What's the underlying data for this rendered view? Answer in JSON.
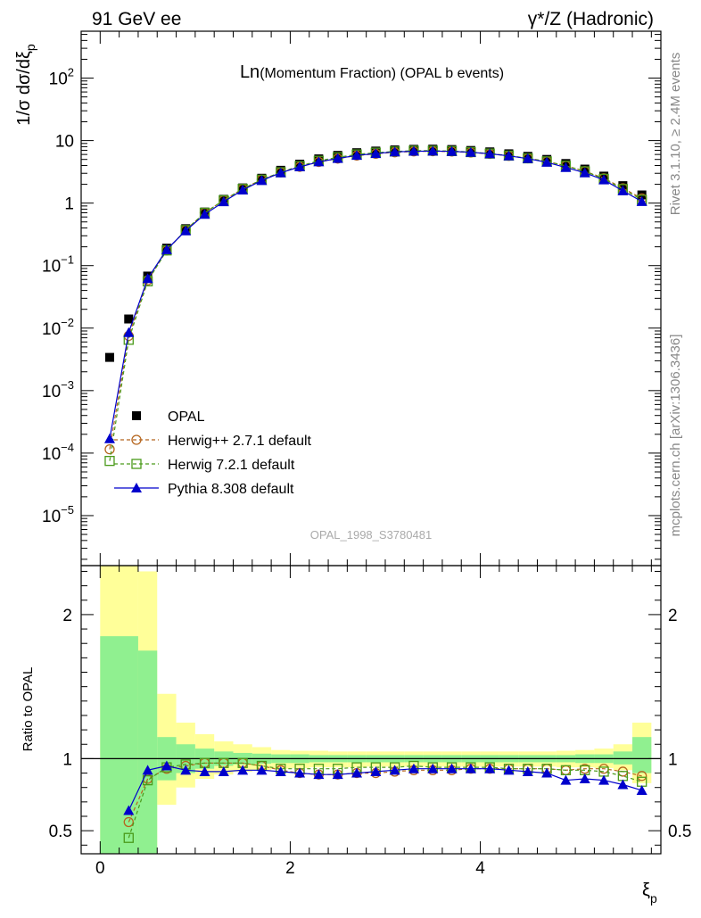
{
  "header": {
    "left": "91 GeV ee",
    "right": "γ*/Z (Hadronic)"
  },
  "side": {
    "rivet": "Rivet 3.1.10, ≥ 2.4M events",
    "mcplots": "mcplots.cern.ch [arXiv:1306.3436]"
  },
  "chart_data": [
    {
      "type": "scatter",
      "panel": "main",
      "title_main": "Ln",
      "title_rest": "(Momentum Fraction) (OPAL b events)",
      "ylabel": "1/σ dσ/dξ",
      "ylabel_sub": "p",
      "yscale": "log",
      "xlim": [
        -0.2,
        5.9
      ],
      "ylim_exp": [
        -5.8,
        2.75
      ],
      "yticks": [
        {
          "exp": 2,
          "label": "10",
          "sup": "2"
        },
        {
          "exp": 1,
          "label": "10",
          "sup": ""
        },
        {
          "exp": 0,
          "label": "1",
          "sup": ""
        },
        {
          "exp": -1,
          "label": "10",
          "sup": "−1"
        },
        {
          "exp": -2,
          "label": "10",
          "sup": "−2"
        },
        {
          "exp": -3,
          "label": "10",
          "sup": "−3"
        },
        {
          "exp": -4,
          "label": "10",
          "sup": "−4"
        },
        {
          "exp": -5,
          "label": "10",
          "sup": "−5"
        }
      ],
      "watermark": "OPAL_1998_S3780481",
      "legend": {
        "position": "lower-left"
      },
      "x": [
        0.1,
        0.3,
        0.5,
        0.7,
        0.9,
        1.1,
        1.3,
        1.5,
        1.7,
        1.9,
        2.1,
        2.3,
        2.5,
        2.7,
        2.9,
        3.1,
        3.3,
        3.5,
        3.7,
        3.9,
        4.1,
        4.3,
        4.5,
        4.7,
        4.9,
        5.1,
        5.3,
        5.5,
        5.7
      ],
      "series": [
        {
          "name": "OPAL",
          "color": "#000000",
          "marker": "square-filled",
          "values": [
            0.0034,
            0.014,
            0.068,
            0.19,
            0.39,
            0.72,
            1.15,
            1.75,
            2.5,
            3.35,
            4.2,
            5.1,
            5.8,
            6.4,
            6.8,
            7.1,
            7.25,
            7.3,
            7.2,
            6.95,
            6.6,
            6.15,
            5.6,
            5.0,
            4.3,
            3.5,
            2.7,
            1.9,
            1.35
          ]
        },
        {
          "name": "Herwig++ 2.7.1 default",
          "color": "#b5651d",
          "marker": "circle-open",
          "dash": true,
          "values": [
            0.000115,
            0.0075,
            0.058,
            0.175,
            0.37,
            0.7,
            1.11,
            1.69,
            2.38,
            3.1,
            3.8,
            4.55,
            5.15,
            5.75,
            6.15,
            6.5,
            6.7,
            6.75,
            6.68,
            6.45,
            6.12,
            5.7,
            5.2,
            4.65,
            3.95,
            3.25,
            2.5,
            1.73,
            1.19
          ]
        },
        {
          "name": "Herwig 7.2.1 default",
          "color": "#4a9a1a",
          "marker": "square-open",
          "dash": true,
          "values": [
            7.5e-05,
            0.0065,
            0.056,
            0.175,
            0.37,
            0.7,
            1.11,
            1.69,
            2.37,
            3.12,
            3.92,
            4.75,
            5.4,
            6.0,
            6.4,
            6.7,
            6.9,
            6.9,
            6.8,
            6.55,
            6.2,
            5.75,
            5.2,
            4.65,
            3.95,
            3.22,
            2.45,
            1.68,
            1.13
          ]
        },
        {
          "name": "Pythia 8.308 default",
          "color": "#0000cc",
          "marker": "triangle-filled",
          "dash": false,
          "values": [
            0.00017,
            0.0085,
            0.062,
            0.18,
            0.36,
            0.66,
            1.05,
            1.62,
            2.3,
            3.05,
            3.8,
            4.58,
            5.18,
            5.8,
            6.2,
            6.6,
            6.75,
            6.8,
            6.72,
            6.5,
            6.15,
            5.7,
            5.15,
            4.5,
            3.72,
            3.05,
            2.35,
            1.57,
            1.06
          ]
        }
      ]
    },
    {
      "type": "line",
      "panel": "ratio",
      "ylabel": "Ratio to OPAL",
      "xlabel": "ξ",
      "xlabel_sub": "p",
      "xlim": [
        -0.2,
        5.9
      ],
      "ylim": [
        0.34,
        2.34
      ],
      "xticks": [
        0,
        2,
        4
      ],
      "yticks": [
        0.5,
        1,
        2
      ],
      "ytick_labels": [
        "0.5",
        "1",
        "2"
      ],
      "bin_edges": [
        0.0,
        0.4,
        0.6,
        0.8,
        1.0,
        1.2,
        1.4,
        1.6,
        1.8,
        2.0,
        2.2,
        2.4,
        2.6,
        2.8,
        3.0,
        3.2,
        3.4,
        3.6,
        3.8,
        4.0,
        4.2,
        4.4,
        4.6,
        4.8,
        5.0,
        5.2,
        5.4,
        5.6,
        5.8
      ],
      "band_stat": {
        "color": "#90f090",
        "lo": [
          0.0,
          0.0,
          0.85,
          0.9,
          0.93,
          0.95,
          0.96,
          0.965,
          0.97,
          0.97,
          0.975,
          0.975,
          0.975,
          0.975,
          0.975,
          0.975,
          0.975,
          0.975,
          0.975,
          0.975,
          0.975,
          0.975,
          0.975,
          0.975,
          0.97,
          0.97,
          0.96,
          0.9
        ],
        "hi": [
          1.85,
          1.75,
          1.15,
          1.1,
          1.07,
          1.05,
          1.04,
          1.035,
          1.03,
          1.03,
          1.025,
          1.025,
          1.025,
          1.025,
          1.025,
          1.025,
          1.025,
          1.025,
          1.025,
          1.025,
          1.025,
          1.025,
          1.025,
          1.025,
          1.03,
          1.03,
          1.05,
          1.15
        ]
      },
      "band_tot": {
        "color": "#ffff99",
        "lo": [
          0.0,
          0.0,
          0.68,
          0.8,
          0.86,
          0.89,
          0.91,
          0.92,
          0.93,
          0.935,
          0.94,
          0.94,
          0.94,
          0.945,
          0.945,
          0.945,
          0.945,
          0.945,
          0.945,
          0.945,
          0.945,
          0.945,
          0.945,
          0.94,
          0.94,
          0.935,
          0.92,
          0.83
        ],
        "hi": [
          2.34,
          2.3,
          1.45,
          1.25,
          1.17,
          1.12,
          1.1,
          1.08,
          1.06,
          1.055,
          1.055,
          1.05,
          1.05,
          1.05,
          1.05,
          1.05,
          1.05,
          1.05,
          1.05,
          1.05,
          1.05,
          1.05,
          1.05,
          1.055,
          1.06,
          1.07,
          1.1,
          1.25
        ]
      },
      "x": [
        0.1,
        0.3,
        0.5,
        0.7,
        0.9,
        1.1,
        1.3,
        1.5,
        1.7,
        1.9,
        2.1,
        2.3,
        2.5,
        2.7,
        2.9,
        3.1,
        3.3,
        3.5,
        3.7,
        3.9,
        4.1,
        4.3,
        4.5,
        4.7,
        4.9,
        5.1,
        5.3,
        5.5,
        5.7
      ],
      "series": [
        {
          "name": "Herwig++ 2.7.1 default",
          "color": "#b5651d",
          "marker": "circle-open",
          "dash": true,
          "values": [
            null,
            0.56,
            0.86,
            0.93,
            0.95,
            0.97,
            0.97,
            0.97,
            0.95,
            0.92,
            0.9,
            0.89,
            0.89,
            0.9,
            0.9,
            0.91,
            0.92,
            0.92,
            0.92,
            0.93,
            0.93,
            0.93,
            0.93,
            0.93,
            0.92,
            0.93,
            0.93,
            0.91,
            0.88
          ]
        },
        {
          "name": "Herwig 7.2.1 default",
          "color": "#4a9a1a",
          "marker": "square-open",
          "dash": true,
          "values": [
            null,
            0.45,
            0.85,
            0.94,
            0.96,
            0.97,
            0.97,
            0.97,
            0.95,
            0.93,
            0.93,
            0.93,
            0.93,
            0.94,
            0.94,
            0.94,
            0.95,
            0.94,
            0.94,
            0.94,
            0.94,
            0.93,
            0.93,
            0.93,
            0.92,
            0.92,
            0.91,
            0.88,
            0.84
          ]
        },
        {
          "name": "Pythia 8.308 default",
          "color": "#0000cc",
          "marker": "triangle-filled",
          "dash": false,
          "values": [
            null,
            0.64,
            0.92,
            0.95,
            0.92,
            0.91,
            0.91,
            0.92,
            0.92,
            0.91,
            0.9,
            0.89,
            0.89,
            0.9,
            0.91,
            0.92,
            0.93,
            0.93,
            0.93,
            0.93,
            0.93,
            0.92,
            0.91,
            0.9,
            0.85,
            0.86,
            0.85,
            0.82,
            0.78
          ]
        }
      ]
    }
  ]
}
